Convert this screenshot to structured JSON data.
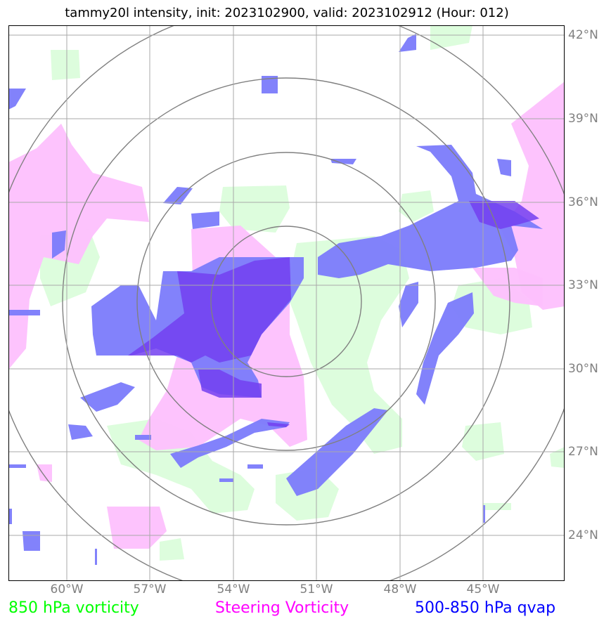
{
  "title": "tammy20l intensity, init: 2023102900, valid: 2023102912 (Hour: 012)",
  "lat_labels": [
    "42°N",
    "39°N",
    "36°N",
    "33°N",
    "30°N",
    "27°N",
    "24°N"
  ],
  "lon_labels": [
    "60°W",
    "57°W",
    "54°W",
    "51°W",
    "48°W",
    "45°W"
  ],
  "legend": {
    "vort850": {
      "label": "850 hPa vorticity",
      "color": "#00ff00"
    },
    "steering": {
      "label": "Steering Vorticity",
      "color": "#ff00ff"
    },
    "qvap": {
      "label": "500-850 hPa qvap",
      "color": "#0000ff"
    }
  },
  "colors": {
    "vort850_fill": "#ddfddd",
    "steering_fill": "#fdc0fd",
    "qvap_fill": "#7b7bfb",
    "grid": "#a9a9a9",
    "range_rings": "#808080"
  }
}
